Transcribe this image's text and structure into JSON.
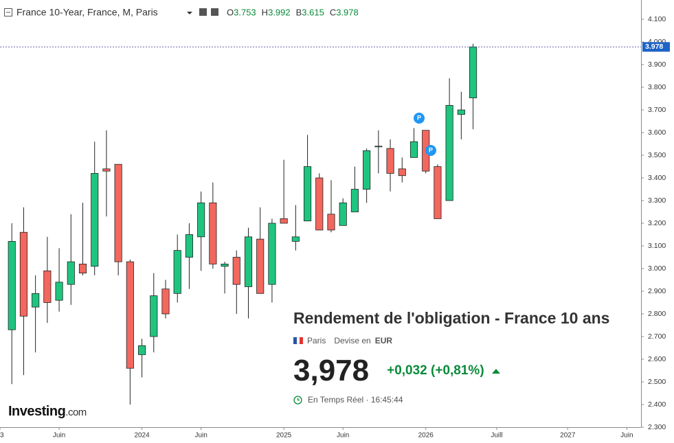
{
  "chart_data": {
    "type": "candlestick",
    "title": "France 10-Year, France, M, Paris",
    "ohlc_labels": [
      "O",
      "H",
      "B",
      "C"
    ],
    "x": [
      1,
      2,
      3,
      4,
      5,
      6,
      7,
      8,
      9,
      10,
      11,
      12,
      13,
      14,
      15,
      16,
      17,
      18,
      19,
      20,
      21,
      22,
      23,
      24,
      25,
      26,
      27,
      28,
      29,
      30,
      31,
      32,
      33,
      34,
      35,
      36,
      37,
      38,
      39,
      40
    ],
    "open": [
      2.73,
      3.16,
      2.83,
      2.99,
      2.86,
      2.93,
      3.02,
      3.01,
      3.44,
      3.46,
      3.03,
      2.62,
      2.7,
      2.91,
      2.89,
      3.05,
      3.14,
      3.29,
      3.01,
      3.05,
      2.92,
      3.13,
      2.93,
      3.22,
      3.12,
      3.21,
      3.4,
      3.24,
      3.19,
      3.25,
      3.35,
      3.54,
      3.53,
      3.44,
      3.49,
      3.61,
      3.45,
      3.3,
      3.68,
      3.753
    ],
    "high": [
      3.2,
      3.27,
      2.97,
      3.14,
      3.09,
      3.24,
      3.29,
      3.56,
      3.61,
      3.46,
      3.04,
      2.69,
      2.98,
      2.95,
      3.15,
      3.2,
      3.34,
      3.38,
      3.03,
      3.08,
      3.18,
      3.27,
      3.22,
      3.48,
      3.28,
      3.59,
      3.42,
      3.39,
      3.31,
      3.45,
      3.53,
      3.61,
      3.57,
      3.49,
      3.62,
      3.61,
      3.46,
      3.84,
      3.78,
      3.992
    ],
    "low": [
      2.49,
      2.53,
      2.63,
      2.76,
      2.81,
      2.84,
      2.97,
      2.97,
      3.23,
      2.97,
      2.4,
      2.52,
      2.63,
      2.78,
      2.85,
      2.91,
      2.99,
      3.0,
      2.89,
      2.8,
      2.78,
      2.89,
      2.85,
      3.2,
      3.08,
      3.21,
      3.17,
      3.16,
      3.19,
      3.25,
      3.29,
      3.42,
      3.34,
      3.38,
      3.49,
      3.42,
      3.22,
      3.3,
      3.57,
      3.615
    ],
    "close": [
      3.12,
      2.79,
      2.89,
      2.85,
      2.94,
      3.03,
      2.98,
      3.42,
      3.43,
      3.03,
      2.56,
      2.66,
      2.88,
      2.8,
      3.08,
      3.15,
      3.29,
      3.02,
      3.02,
      2.93,
      3.14,
      2.89,
      3.2,
      3.2,
      3.14,
      3.45,
      3.17,
      3.17,
      3.29,
      3.35,
      3.52,
      3.54,
      3.42,
      3.41,
      3.56,
      3.43,
      3.22,
      3.72,
      3.7,
      3.978
    ],
    "up_color": "#1fc57f",
    "down_color": "#f2675e",
    "xlim": [
      0,
      54.2
    ],
    "xticks": [
      {
        "value": 0,
        "label": "3"
      },
      {
        "value": 5,
        "label": "Juin"
      },
      {
        "value": 12,
        "label": "2024"
      },
      {
        "value": 17,
        "label": "Juin"
      },
      {
        "value": 24,
        "label": "2025"
      },
      {
        "value": 29,
        "label": "Juin"
      },
      {
        "value": 36,
        "label": "2026"
      },
      {
        "value": 42,
        "label": "Juill"
      },
      {
        "value": 48,
        "label": "2027"
      },
      {
        "value": 53,
        "label": "Juin"
      }
    ],
    "ylim": [
      2.3,
      4.185
    ],
    "yticks": [
      {
        "value": 2.3,
        "label": "2.300"
      },
      {
        "value": 2.4,
        "label": "2.400"
      },
      {
        "value": 2.5,
        "label": "2.500"
      },
      {
        "value": 2.6,
        "label": "2.600"
      },
      {
        "value": 2.7,
        "label": "2.700"
      },
      {
        "value": 2.8,
        "label": "2.800"
      },
      {
        "value": 2.9,
        "label": "2.900"
      },
      {
        "value": 3.0,
        "label": "3.000"
      },
      {
        "value": 3.1,
        "label": "3.100"
      },
      {
        "value": 3.2,
        "label": "3.200"
      },
      {
        "value": 3.3,
        "label": "3.300"
      },
      {
        "value": 3.4,
        "label": "3.400"
      },
      {
        "value": 3.5,
        "label": "3.500"
      },
      {
        "value": 3.6,
        "label": "3.600"
      },
      {
        "value": 3.7,
        "label": "3.700"
      },
      {
        "value": 3.8,
        "label": "3.800"
      },
      {
        "value": 3.9,
        "label": "3.900"
      },
      {
        "value": 4.0,
        "label": "4.000"
      },
      {
        "value": 4.1,
        "label": "4.100"
      }
    ],
    "grid": false
  },
  "panel": {
    "title": "Rendement de l'obligation - France 10 ans",
    "exchange": "Paris",
    "currency_label": "Devise en",
    "currency": "EUR",
    "price": "3,978",
    "change": "+0,032 (+0,81%)",
    "time": "En Temps Réel · 16:45:44",
    "brand": "Investing",
    "brand_suffix": ".com"
  }
}
